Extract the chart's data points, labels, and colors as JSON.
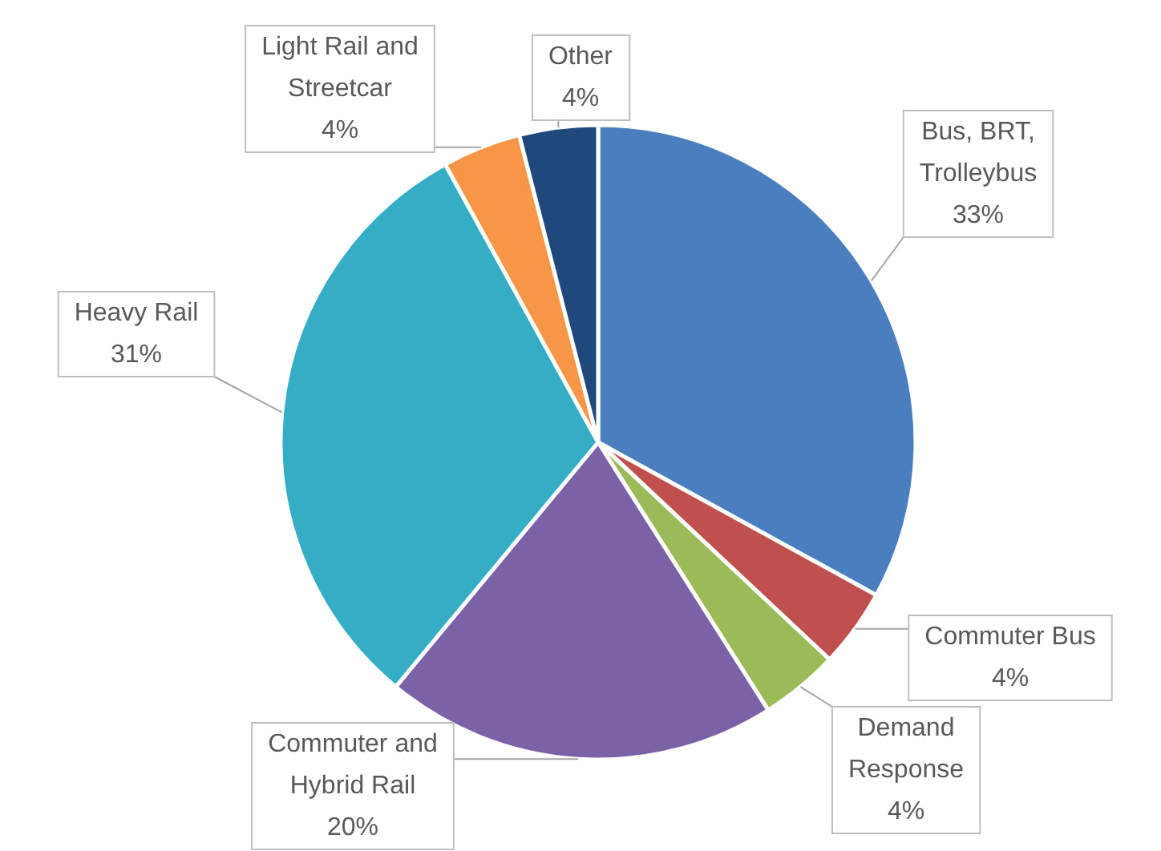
{
  "chart_data": {
    "type": "pie",
    "categories": [
      "Bus, BRT, Trolleybus",
      "Commuter Bus",
      "Demand Response",
      "Commuter and Hybrid Rail",
      "Heavy Rail",
      "Light Rail and Streetcar",
      "Other"
    ],
    "values": [
      33,
      4,
      4,
      20,
      31,
      4,
      4
    ],
    "value_labels": [
      "33%",
      "4%",
      "4%",
      "20%",
      "31%",
      "4%",
      "4%"
    ],
    "colors": [
      "#4a7ebf",
      "#c0504d",
      "#9bbb59",
      "#7b61a6",
      "#34adc5",
      "#f79646",
      "#1f497d"
    ]
  }
}
